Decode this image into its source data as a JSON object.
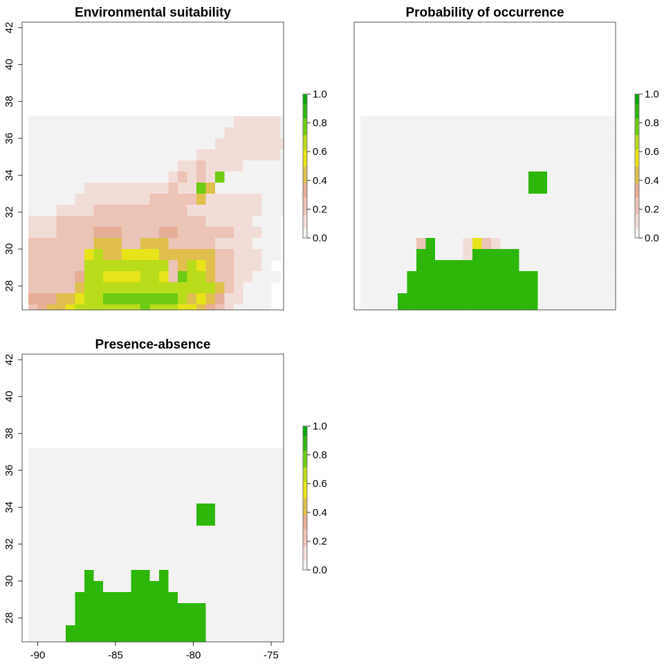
{
  "chart_data": [
    {
      "type": "heatmap",
      "title": "Environmental suitability",
      "xlim": [
        -91,
        -74.2
      ],
      "ylim": [
        26.7,
        42.3
      ],
      "y_ticks": [
        "28",
        "30",
        "32",
        "34",
        "36",
        "38",
        "40",
        "42"
      ],
      "x_ticks": [],
      "legend": {
        "ticks": [
          "0.0",
          "0.2",
          "0.4",
          "0.6",
          "0.8",
          "1.0"
        ],
        "range": [
          0,
          1
        ]
      },
      "grid": {
        "lon_min": -90.6,
        "lat_max": 40.8,
        "cell": 0.6,
        "codes": "0-0=none 1=0 2=0.1 3=0.2 4=0.3 5=0.45 6=0.55 7=0.7 8=0.85 9=1.0",
        "rows": [
          "0000000000000000000000000000",
          "0000000000000000000000000000",
          "0000000000000000000000000000",
          "0000000000000000000000000000",
          "0000000000000000000000000000",
          "0000000000000000000000000000",
          "1111111111111111111111222221",
          "1111111111111111111112222221",
          "1111111111111111111122222222",
          "1111111111111111112222222221",
          "1111111111111111223222211111",
          "1111111111111112323281111111",
          "1111112222222223228511111111",
          "1111122222222333335222222111",
          "1112222333333333322222222111",
          "2223333333333333333222221110",
          "2223333444333344333333222110",
          "3333333555335553333322221110",
          "3333336755666655555533222110",
          "3333337777777773576533222100",
          "3333347766667763877533221110",
          "3333357777777777777753211100",
          "4445567788888888756542211100",
          "3455677777778777665432111100",
          "3456777777777777655432111100",
          "3457777878777777543321111000",
          "3557777777777775533211111000",
          "3467777777776554332111110000",
          "4567777777654443322111110000",
          "3577754553344332211111100000",
          "7777665554433321111111000000",
          "7777665544433321111111000000",
          "5555655444433211111110000000",
          "6644444444432111111100000000",
          "2222222222221111111100000000",
          "1111111111111111111100000000",
          "1111111111111111111100000000",
          "1111111111111111111100000000",
          "1111111111111111111100000000",
          "0000000000000000000000000000"
        ]
      }
    },
    {
      "type": "heatmap",
      "title": "Probability of occurrence",
      "xlim": [
        -91,
        -74.2
      ],
      "ylim": [
        26.7,
        42.3
      ],
      "legend": {
        "ticks": [
          "0.0",
          "0.2",
          "0.4",
          "0.6",
          "0.8",
          "1.0"
        ],
        "range": [
          0,
          1
        ]
      },
      "grid": {
        "lon_min": -90.6,
        "lat_max": 40.8,
        "cell": 0.6,
        "codes": "0=none 1=0 2=0.1 3=0.2 4=0.3 5=0.45 6=0.55 7=0.7 8=0.85 9=1.0",
        "rows": [
          "0000000000000000000000000000",
          "0000000000000000000000000000",
          "0000000000000000000000000000",
          "0000000000000000000000000000",
          "0000000000000000000000000000",
          "0000000000000000000000000000",
          "1111111111111111111111111111",
          "1111111111111111111111111111",
          "1111111111111111111111111111",
          "1111111111111111111111111111",
          "1111111111111111111111111111",
          "1111111111111111119911111111",
          "1111111111111111119911111111",
          "1111111111111111111111111111",
          "1111111111111111111111111111",
          "1111111111111111111111111111",
          "1111111111111111111111111111",
          "1111113911126321111111111111",
          "1111119911129999911111111111",
          "1111119999999999911111111111",
          "1111199999999999999111111111",
          "1111199999999999999111111111",
          "1111999999999999999111111111",
          "1111999999999999999111111111",
          "1111999999999999999911111111",
          "1119999999999999999911111111",
          "1119999999999999999111111111",
          "1119999999999999991111111111",
          "1119999999999999951111111111",
          "1119999999999999911111111111",
          "9999999999999991111111111111",
          "9999999999999991111111111111",
          "9999999999919991111111111111",
          "9999999999919991111111111111",
          "9999999999999999111111111111",
          "9999999999999999111111111111",
          "9999999999999999111111111111",
          "9999999111111111111111111111",
          "1111111111111111111111111111",
          "1111111111111111111111111111"
        ]
      }
    },
    {
      "type": "heatmap",
      "title": "Presence-absence",
      "xlim": [
        -91,
        -74.2
      ],
      "ylim": [
        26.7,
        42.3
      ],
      "y_ticks": [
        "28",
        "30",
        "32",
        "34",
        "36",
        "38",
        "40",
        "42"
      ],
      "x_ticks": [
        "-90",
        "-85",
        "-80",
        "-75"
      ],
      "legend": {
        "ticks": [
          "0.0",
          "0.2",
          "0.4",
          "0.6",
          "0.8",
          "1.0"
        ],
        "range": [
          0,
          1
        ]
      },
      "grid": {
        "lon_min": -90.6,
        "lat_max": 40.8,
        "cell": 0.6,
        "codes": "0=none 1=0 9=1.0",
        "rows": [
          "0000000000000000000000000000",
          "0000000000000000000000000000",
          "0000000000000000000000000000",
          "0000000000000000000000000000",
          "0000000000000000000000000000",
          "0000000000000000000000000000",
          "1111111111111111111111111111",
          "1111111111111111111111111111",
          "1111111111111111111111111111",
          "1111111111111111111111111111",
          "1111111111111111111111111111",
          "1111111111111111119911111111",
          "1111111111111111119911111111",
          "1111111111111111111111111111",
          "1111111111111111111111111111",
          "1111111111111111111111111111",
          "1111111111111111111111111111",
          "1111119111199191111111111111",
          "1111119911199991111111111111",
          "1111199999999999111111111111",
          "1111199999999999999111111111",
          "1111199999999999999111111111",
          "1111999999999999999111111111",
          "1111999999999999999111111111",
          "1119999999999999999111111111",
          "1119999999999999999111111111",
          "1119999999999999991111111111",
          "1119999999999999911111111111",
          "1119999999999999911111111111",
          "1119999999999999911111111111",
          "9999999999999991111111111111",
          "9999999999999991111111111111",
          "9999999999999991111111111111",
          "9999999199999991111111111111",
          "9999999999999991111111111111",
          "9999999991111111111111111111",
          "9999111111111111111111111111",
          "1111111111111111111111111111",
          "1111111111111111111111111111",
          "1111111111111111111111111111"
        ]
      }
    }
  ],
  "colors": {
    "zero": "#f2f2f2",
    "ramp": [
      "#f2f2f2",
      "#f1ddd8",
      "#ecc3b7",
      "#e6ae97",
      "#dfc04e",
      "#e6e31b",
      "#b9dc1c",
      "#6fcb14",
      "#2eb70a",
      "#00a600"
    ]
  }
}
